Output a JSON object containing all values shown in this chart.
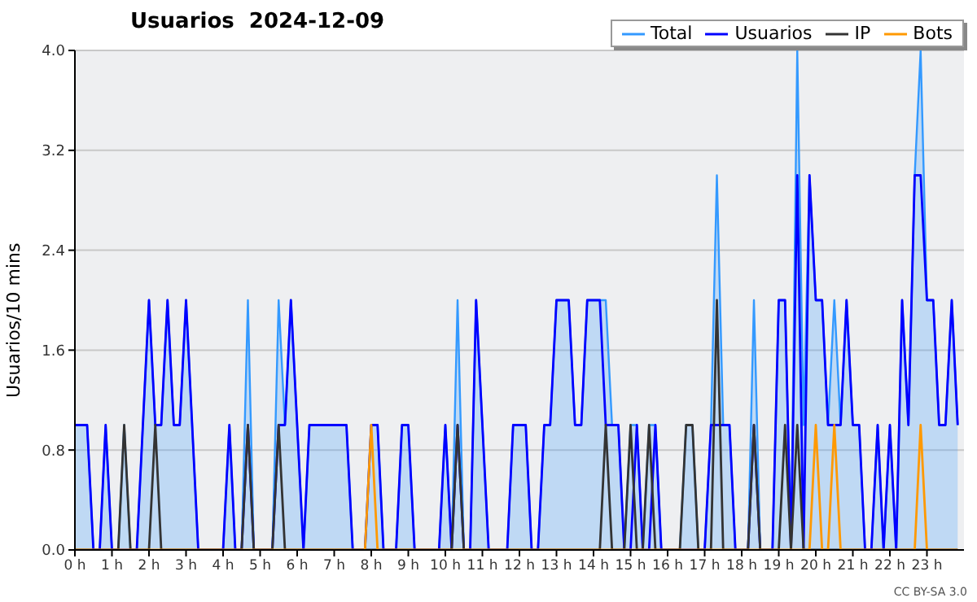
{
  "chart_data": {
    "type": "line",
    "title": "Usuarios  2024-12-09",
    "ylabel": "Usuarios/10 mins",
    "annotations": [
      "CC BY-SA 3.0"
    ],
    "xlim": [
      0,
      24
    ],
    "xticks": [
      {
        "value": 0,
        "label": "0 h"
      },
      {
        "value": 1,
        "label": "1 h"
      },
      {
        "value": 2,
        "label": "2 h"
      },
      {
        "value": 3,
        "label": "3 h"
      },
      {
        "value": 4,
        "label": "4 h"
      },
      {
        "value": 5,
        "label": "5 h"
      },
      {
        "value": 6,
        "label": "6 h"
      },
      {
        "value": 7,
        "label": "7 h"
      },
      {
        "value": 8,
        "label": "8 h"
      },
      {
        "value": 9,
        "label": "9 h"
      },
      {
        "value": 10,
        "label": "10 h"
      },
      {
        "value": 11,
        "label": "11 h"
      },
      {
        "value": 12,
        "label": "12 h"
      },
      {
        "value": 13,
        "label": "13 h"
      },
      {
        "value": 14,
        "label": "14 h"
      },
      {
        "value": 15,
        "label": "15 h"
      },
      {
        "value": 16,
        "label": "16 h"
      },
      {
        "value": 17,
        "label": "17 h"
      },
      {
        "value": 18,
        "label": "18 h"
      },
      {
        "value": 19,
        "label": "19 h"
      },
      {
        "value": 20,
        "label": "20 h"
      },
      {
        "value": 21,
        "label": "21 h"
      },
      {
        "value": 22,
        "label": "22 h"
      },
      {
        "value": 23,
        "label": "23 h"
      }
    ],
    "ylim": [
      0,
      4
    ],
    "yticks": [
      {
        "value": 0,
        "label": "0.0"
      },
      {
        "value": 0.8,
        "label": "0.8"
      },
      {
        "value": 1.6,
        "label": "1.6"
      },
      {
        "value": 2.4,
        "label": "2.4"
      },
      {
        "value": 3.2,
        "label": "3.2"
      },
      {
        "value": 4,
        "label": "4.0"
      }
    ],
    "grid": "y",
    "legend": "top right",
    "series": [
      {
        "name": "Total",
        "type": "area",
        "color": "#3399ff",
        "x": [
          0,
          0.33,
          0.5,
          0.67,
          0.83,
          1.0,
          1.17,
          1.33,
          1.5,
          1.67,
          2.0,
          2.17,
          2.33,
          2.5,
          2.67,
          2.83,
          3.0,
          3.33,
          4.0,
          4.17,
          4.33,
          4.5,
          4.67,
          4.83,
          5.33,
          5.5,
          5.67,
          5.83,
          6.17,
          6.33,
          7.33,
          7.5,
          7.83,
          8.0,
          8.17,
          8.33,
          8.67,
          8.83,
          9.0,
          9.17,
          9.83,
          10.0,
          10.17,
          10.33,
          10.5,
          10.67,
          10.83,
          11.17,
          11.67,
          11.83,
          12.17,
          12.33,
          12.5,
          12.67,
          12.83,
          13.0,
          13.33,
          13.5,
          13.67,
          13.83,
          14.33,
          14.5,
          14.67,
          14.83,
          15.0,
          15.17,
          15.33,
          15.5,
          15.67,
          15.83,
          16.33,
          16.5,
          16.67,
          16.83,
          17.0,
          17.17,
          17.33,
          17.5,
          17.67,
          17.83,
          18.17,
          18.33,
          18.5,
          18.83,
          19.0,
          19.17,
          19.33,
          19.5,
          19.67,
          19.83,
          20.0,
          20.17,
          20.33,
          20.5,
          20.67,
          20.83,
          21.0,
          21.17,
          21.33,
          21.5,
          21.67,
          21.83,
          22.0,
          22.17,
          22.33,
          22.5,
          22.67,
          22.83,
          23.0,
          23.17,
          23.33,
          23.5,
          23.67,
          23.83
        ],
        "values": [
          1,
          1,
          0,
          0,
          1,
          0,
          0,
          1,
          0,
          0,
          2,
          1,
          1,
          2,
          1,
          1,
          2,
          0,
          0,
          1,
          0,
          0,
          2,
          0,
          0,
          2,
          1,
          2,
          0,
          1,
          1,
          0,
          0,
          1,
          1,
          0,
          0,
          1,
          1,
          0,
          0,
          1,
          0,
          2,
          0,
          0,
          2,
          0,
          0,
          1,
          1,
          0,
          0,
          1,
          1,
          2,
          2,
          1,
          1,
          2,
          2,
          1,
          1,
          0,
          1,
          1,
          0,
          1,
          1,
          0,
          0,
          1,
          1,
          0,
          0,
          1,
          3,
          1,
          1,
          0,
          0,
          2,
          0,
          0,
          2,
          2,
          0,
          4,
          1,
          3,
          2,
          2,
          1,
          2,
          1,
          2,
          1,
          1,
          0,
          0,
          1,
          0,
          1,
          0,
          2,
          1,
          3,
          4,
          2,
          2,
          1,
          1,
          2,
          1
        ]
      },
      {
        "name": "Usuarios",
        "type": "line",
        "color": "#0000ff",
        "x": [
          0,
          0.33,
          0.5,
          0.67,
          0.83,
          1.0,
          1.67,
          2.0,
          2.17,
          2.33,
          2.5,
          2.67,
          2.83,
          3.0,
          3.33,
          4.0,
          4.17,
          4.33,
          4.5,
          4.67,
          4.83,
          5.33,
          5.5,
          5.67,
          5.83,
          6.17,
          6.33,
          7.33,
          7.5,
          7.83,
          8.0,
          8.17,
          8.33,
          8.67,
          8.83,
          9.0,
          9.17,
          9.83,
          10.0,
          10.17,
          10.33,
          10.5,
          10.67,
          10.83,
          11.17,
          11.67,
          11.83,
          12.17,
          12.33,
          12.5,
          12.67,
          12.83,
          13.0,
          13.33,
          13.5,
          13.67,
          13.83,
          14.17,
          14.33,
          14.67,
          14.83,
          15.0,
          15.17,
          15.33,
          15.5,
          15.67,
          15.83,
          17.0,
          17.17,
          17.67,
          17.83,
          18.17,
          18.33,
          18.5,
          18.83,
          19.0,
          19.17,
          19.33,
          19.5,
          19.67,
          19.83,
          20.0,
          20.17,
          20.33,
          20.67,
          20.83,
          21.0,
          21.17,
          21.33,
          21.5,
          21.67,
          21.83,
          22.0,
          22.17,
          22.33,
          22.5,
          22.67,
          22.83,
          23.0,
          23.17,
          23.33,
          23.5,
          23.67,
          23.83
        ],
        "values": [
          1,
          1,
          0,
          0,
          1,
          0,
          0,
          2,
          1,
          1,
          2,
          1,
          1,
          2,
          0,
          0,
          1,
          0,
          0,
          1,
          0,
          0,
          1,
          1,
          2,
          0,
          1,
          1,
          0,
          0,
          1,
          1,
          0,
          0,
          1,
          1,
          0,
          0,
          1,
          0,
          1,
          0,
          0,
          2,
          0,
          0,
          1,
          1,
          0,
          0,
          1,
          1,
          2,
          2,
          1,
          1,
          2,
          2,
          1,
          1,
          0,
          0,
          1,
          0,
          0,
          1,
          0,
          0,
          1,
          1,
          0,
          0,
          1,
          0,
          0,
          2,
          2,
          0,
          3,
          0,
          3,
          2,
          2,
          1,
          1,
          2,
          1,
          1,
          0,
          0,
          1,
          0,
          1,
          0,
          2,
          1,
          3,
          3,
          2,
          2,
          1,
          1,
          2,
          1
        ]
      },
      {
        "name": "IP",
        "type": "line",
        "color": "#333333",
        "x": [
          0,
          1.17,
          1.33,
          1.5,
          2.0,
          2.17,
          2.33,
          4.5,
          4.67,
          4.83,
          5.33,
          5.5,
          5.67,
          10.17,
          10.33,
          10.5,
          14.17,
          14.33,
          14.5,
          14.83,
          15.0,
          15.17,
          15.33,
          15.5,
          15.67,
          16.33,
          16.5,
          16.67,
          16.83,
          17.17,
          17.33,
          17.5,
          18.17,
          18.33,
          18.5,
          19.0,
          19.17,
          19.33,
          19.5,
          19.67,
          23.83
        ],
        "values": [
          0,
          0,
          1,
          0,
          0,
          1,
          0,
          0,
          1,
          0,
          0,
          1,
          0,
          0,
          1,
          0,
          0,
          1,
          0,
          0,
          1,
          0,
          0,
          1,
          0,
          0,
          1,
          1,
          0,
          0,
          2,
          0,
          0,
          1,
          0,
          0,
          1,
          0,
          1,
          0,
          0
        ]
      },
      {
        "name": "Bots",
        "type": "line",
        "color": "#ff9900",
        "x": [
          0,
          7.83,
          8.0,
          8.17,
          19.83,
          20.0,
          20.17,
          20.33,
          20.5,
          20.67,
          22.67,
          22.83,
          23.0,
          23.83
        ],
        "values": [
          0,
          0,
          1,
          0,
          0,
          1,
          0,
          0,
          1,
          0,
          0,
          1,
          0,
          0
        ]
      }
    ]
  }
}
